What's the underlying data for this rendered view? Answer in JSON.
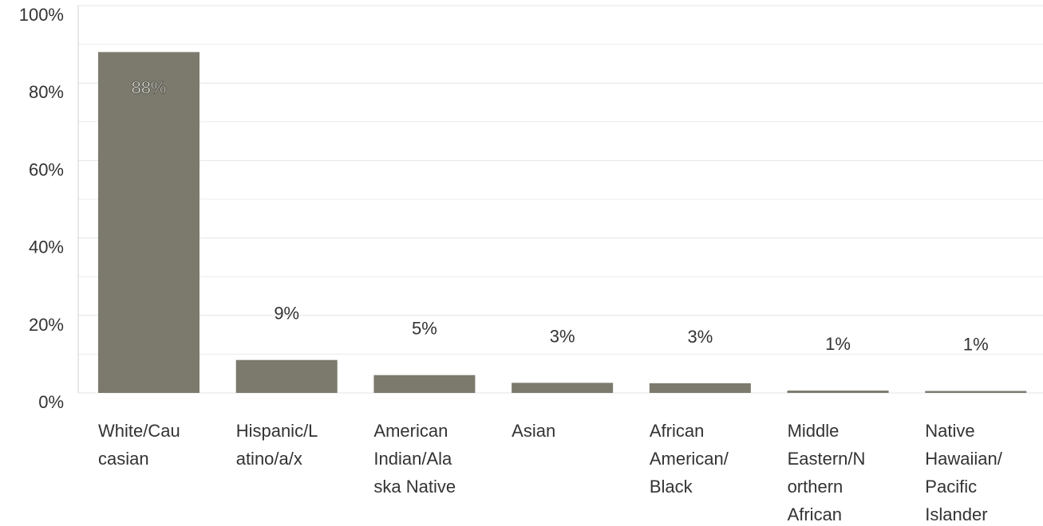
{
  "chart_data": {
    "type": "bar",
    "categories": [
      "White/Caucasian",
      "Hispanic/Latino/a/x",
      "American Indian/Alaska Native",
      "Asian",
      "African American/Black",
      "Middle Eastern/Northern African",
      "Native Hawaiian/Pacific Islander"
    ],
    "values": [
      88,
      8.5,
      4.6,
      2.6,
      2.5,
      0.6,
      0.5
    ],
    "value_labels": [
      "88%",
      "9%",
      "5%",
      "3%",
      "3%",
      "1%",
      "1%"
    ],
    "color": "#7c7a6d",
    "ylim": [
      0,
      100
    ],
    "yticks": [
      {
        "value": 0,
        "label": "0%"
      },
      {
        "value": 20,
        "label": "20%"
      },
      {
        "value": 40,
        "label": "40%"
      },
      {
        "value": 60,
        "label": "60%"
      },
      {
        "value": 80,
        "label": "80%"
      },
      {
        "value": 100,
        "label": "100%"
      }
    ],
    "minor_grid": [
      10,
      30,
      50,
      70,
      90
    ],
    "grid": true
  }
}
